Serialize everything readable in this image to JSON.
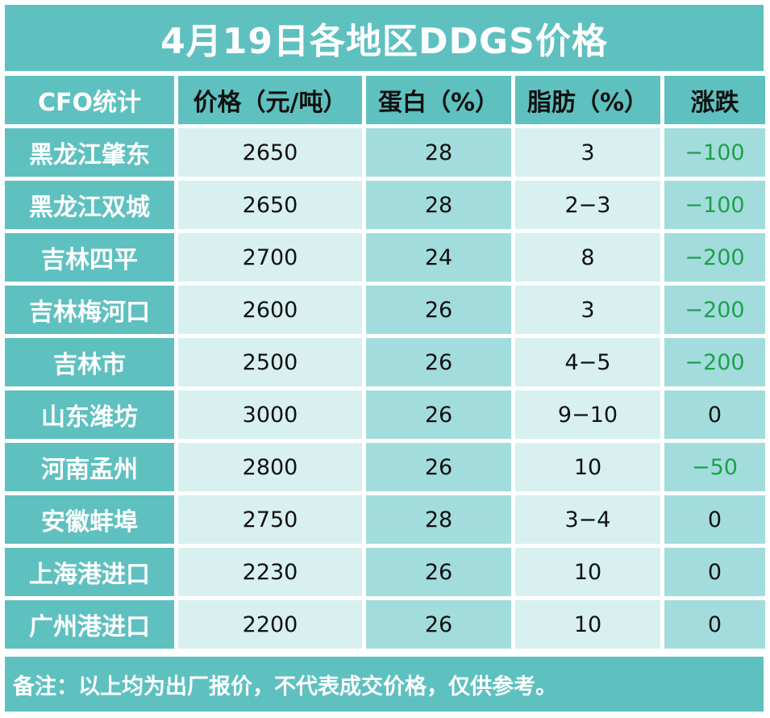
{
  "title": "4月19日各地区DDGS价格",
  "headers": [
    "CFO统计",
    "价格（元/吨）",
    "蛋白（%）",
    "脂肪（%）",
    "涨跌"
  ],
  "rows": [
    {
      "region": "黑龙江肇东",
      "price": "2650",
      "protein": "28",
      "fat": "3",
      "change": "−100"
    },
    {
      "region": "黑龙江双城",
      "price": "2650",
      "protein": "28",
      "fat": "2−3",
      "change": "−100"
    },
    {
      "region": "吉林四平",
      "price": "2700",
      "protein": "24",
      "fat": "8",
      "change": "−200"
    },
    {
      "region": "吉林梅河口",
      "price": "2600",
      "protein": "26",
      "fat": "3",
      "change": "−200"
    },
    {
      "region": "吉林市",
      "price": "2500",
      "protein": "26",
      "fat": "4−5",
      "change": "−200"
    },
    {
      "region": "山东潍坊",
      "price": "3000",
      "protein": "26",
      "fat": "9−10",
      "change": "0"
    },
    {
      "region": "河南孟州",
      "price": "2800",
      "protein": "26",
      "fat": "10",
      "change": "−50"
    },
    {
      "region": "安徽蚌埠",
      "price": "2750",
      "protein": "28",
      "fat": "3−4",
      "change": "0"
    },
    {
      "region": "上海港进口",
      "price": "2230",
      "protein": "26",
      "fat": "10",
      "change": "0"
    },
    {
      "region": "广州港进口",
      "price": "2200",
      "protein": "26",
      "fat": "10",
      "change": "0"
    }
  ],
  "footer": "备注：以上均为出厂报价，不代表成交价格，仅供参考。",
  "colors": {
    "header_teal": "#5fc0c0",
    "row_light": "#d8f0f0",
    "row_mid": "#a3dcdc",
    "negative_change": "#1ea04a"
  }
}
